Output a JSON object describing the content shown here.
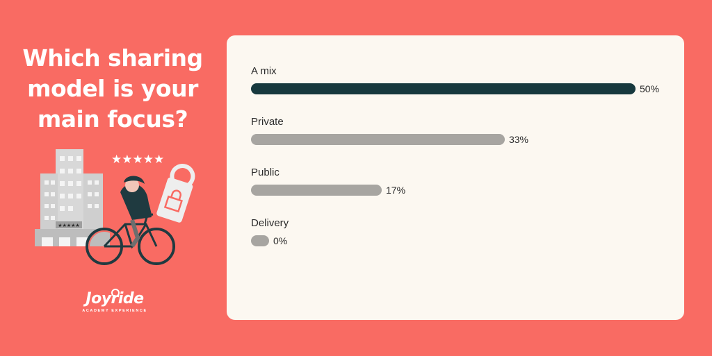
{
  "question": [
    "Which sharing",
    "model is your",
    "main focus?"
  ],
  "illustration": {
    "stars": "★★★★★",
    "building_stars": "★★★★★"
  },
  "logo": {
    "name": "Joyride",
    "tagline": "ACADEMY EXPERIENCE"
  },
  "colors": {
    "background": "#f96b63",
    "card": "#fcf8f1",
    "leading_bar": "#17393e",
    "other_bars": "#a7a5a1"
  },
  "chart_data": {
    "type": "bar",
    "orientation": "horizontal",
    "categories": [
      "A mix",
      "Private",
      "Public",
      "Delivery"
    ],
    "values": [
      50,
      33,
      17,
      0
    ],
    "value_labels": [
      "50%",
      "33%",
      "17%",
      "0%"
    ],
    "unit": "%"
  }
}
